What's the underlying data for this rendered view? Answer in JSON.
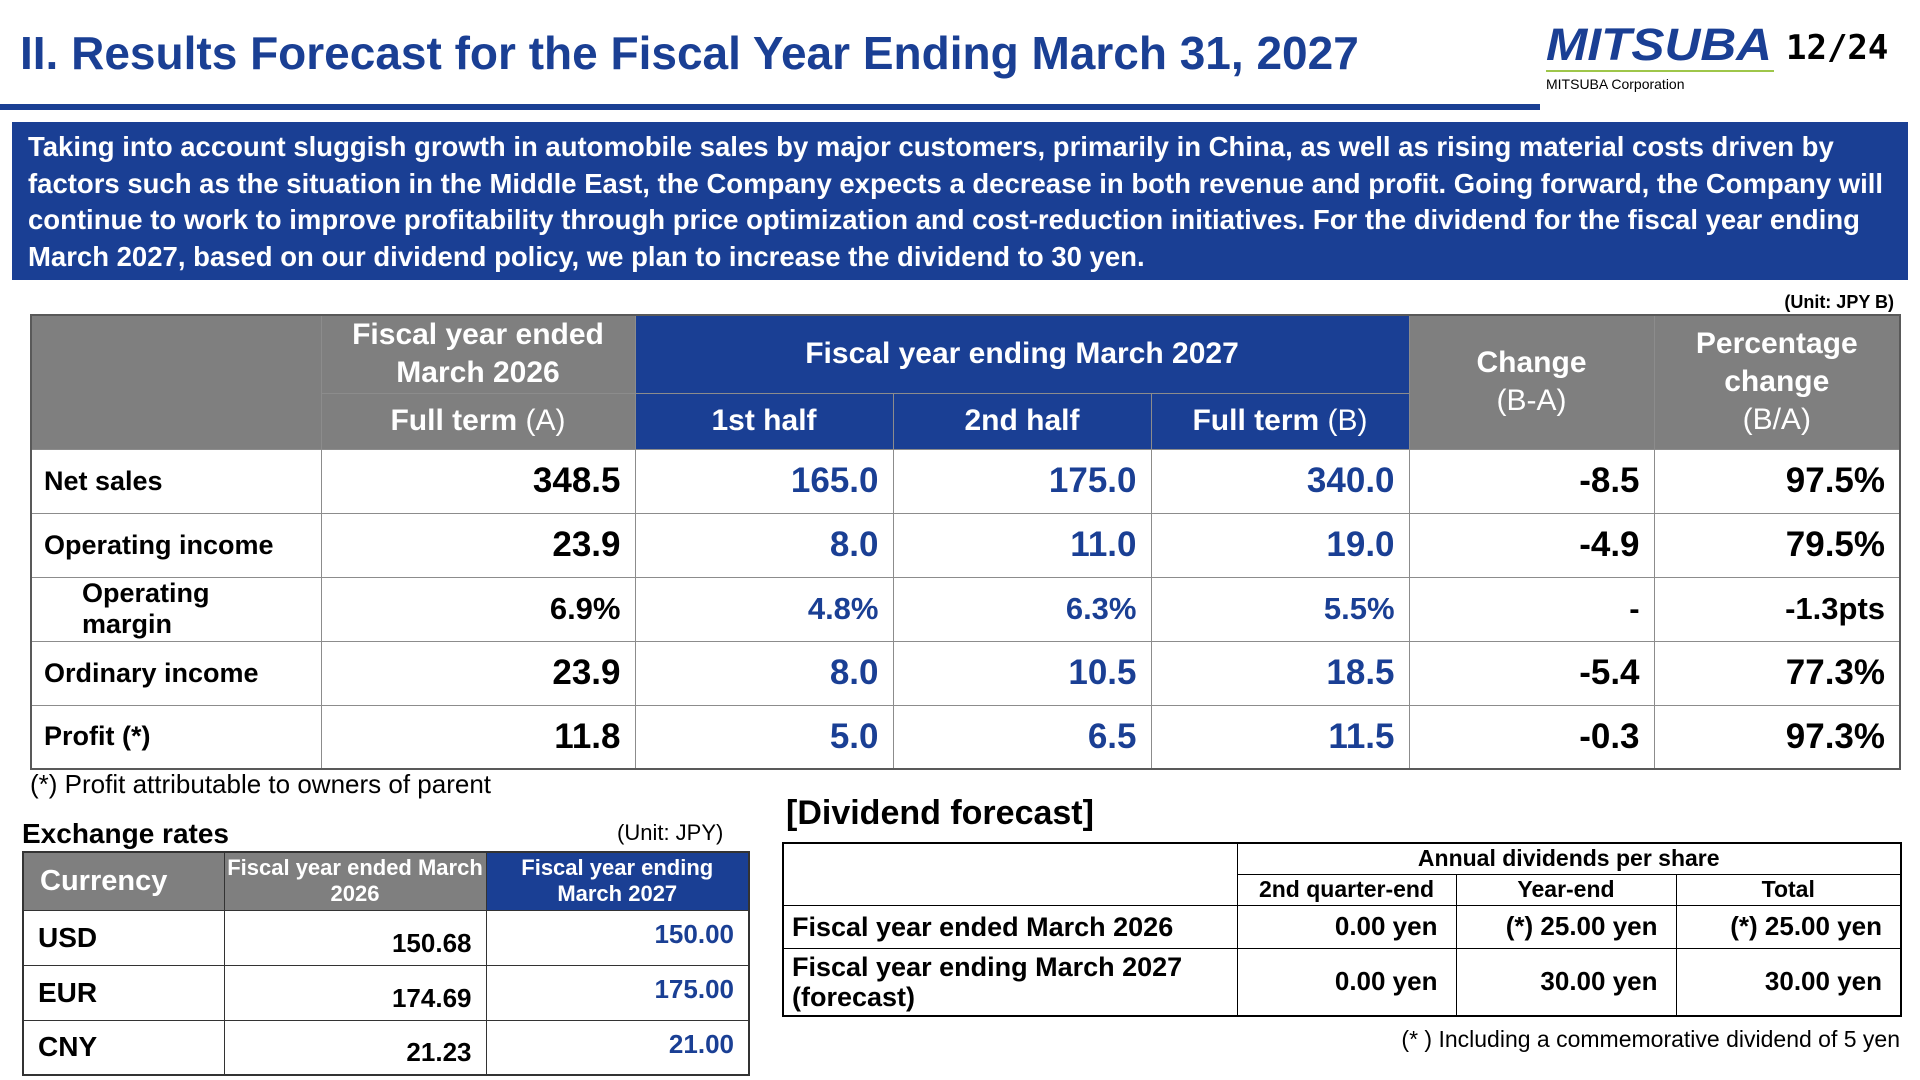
{
  "header": {
    "title": "II. Results Forecast for the Fiscal Year Ending March 31, 2027",
    "logo_alt": "MITSUBA",
    "company": "MITSUBA Corporation",
    "page": "12/24"
  },
  "summary": "Taking into account sluggish growth in automobile sales by major customers, primarily in China, as well as rising material costs driven by factors such as the situation in the Middle East, the Company expects a decrease in both revenue and profit. Going forward, the Company will continue to work to improve profitability through price optimization and cost-reduction initiatives. For the dividend for the fiscal year ending March 2027, based on our dividend policy, we plan to increase the dividend to 30 yen.",
  "forecast_table": {
    "unit": "(Unit: JPY B)",
    "headers": {
      "prev_year": "Fiscal year ended March 2026",
      "prev_full": "Full term",
      "prev_full_suffix": "(A)",
      "next_year": "Fiscal year ending March 2027",
      "half1": "1st half",
      "half2": "2nd half",
      "next_full": "Full term",
      "next_full_suffix": "(B)",
      "change": "Change",
      "change_suffix": "(B-A)",
      "pct": "Percentage change",
      "pct_suffix": "(B/A)"
    },
    "rows": [
      {
        "label": "Net sales",
        "a": "348.5",
        "h1": "165.0",
        "h2": "175.0",
        "b": "340.0",
        "chg": "-8.5",
        "pct": "97.5%"
      },
      {
        "label": "Operating income",
        "a": "23.9",
        "h1": "8.0",
        "h2": "11.0",
        "b": "19.0",
        "chg": "-4.9",
        "pct": "79.5%"
      },
      {
        "label": "Operating margin",
        "a": "6.9%",
        "h1": "4.8%",
        "h2": "6.3%",
        "b": "5.5%",
        "chg": "-",
        "pct": "-1.3pts"
      },
      {
        "label": "Ordinary income",
        "a": "23.9",
        "h1": "8.0",
        "h2": "10.5",
        "b": "18.5",
        "chg": "-5.4",
        "pct": "77.3%"
      },
      {
        "label": "Profit (*)",
        "a": "11.8",
        "h1": "5.0",
        "h2": "6.5",
        "b": "11.5",
        "chg": "-0.3",
        "pct": "97.3%"
      }
    ],
    "footnote": "(*) Profit attributable to owners of parent"
  },
  "exchange": {
    "title": "Exchange rates",
    "unit": "(Unit: JPY)",
    "col_currency": "Currency",
    "col_prev": "Fiscal year ended March 2026",
    "col_next": "Fiscal year ending March 2027",
    "rows": [
      {
        "currency": "USD",
        "prev": "150.68",
        "next": "150.00"
      },
      {
        "currency": "EUR",
        "prev": "174.69",
        "next": "175.00"
      },
      {
        "currency": "CNY",
        "prev": "21.23",
        "next": "21.00"
      }
    ]
  },
  "dividend": {
    "title": "[Dividend forecast]",
    "group_header": "Annual dividends per share",
    "col_q2": "2nd quarter-end",
    "col_ye": "Year-end",
    "col_total": "Total",
    "rows": [
      {
        "label": "Fiscal year ended March 2026",
        "q2": "0.00 yen",
        "ye": "(*) 25.00 yen",
        "total": "(*) 25.00 yen"
      },
      {
        "label": "Fiscal year ending March 2027 (forecast)",
        "q2": "0.00 yen",
        "ye": "30.00 yen",
        "total": "30.00 yen"
      }
    ],
    "note": "(* ) Including a commemorative dividend of 5 yen"
  },
  "colors": {
    "brand_blue": "#1a3f94",
    "header_gray": "#7f7f7f",
    "accent_green": "#9ec64a"
  }
}
